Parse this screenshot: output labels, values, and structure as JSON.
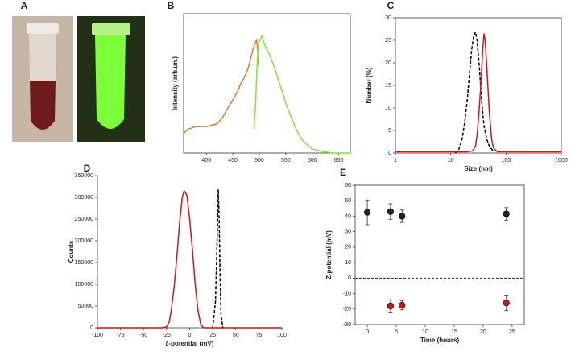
{
  "chart_data": [
    {
      "type": "image",
      "panel_label": "A"
    },
    {
      "type": "line",
      "panel_label": "B",
      "ylabel": "Intensity (arb.un.)",
      "xlim": [
        357,
        672
      ],
      "xticks": [
        400,
        450,
        500,
        550,
        600,
        650
      ],
      "ylim": [
        0,
        1
      ],
      "box": true,
      "series": [
        {
          "color": "#e07b2e",
          "x": [
            357,
            365,
            380,
            400,
            420,
            430,
            440,
            450,
            460,
            465,
            470,
            475,
            480,
            485,
            490,
            493,
            495,
            497,
            499
          ],
          "values": [
            0.14,
            0.17,
            0.19,
            0.19,
            0.21,
            0.25,
            0.32,
            0.38,
            0.45,
            0.5,
            0.53,
            0.57,
            0.62,
            0.7,
            0.77,
            0.8,
            0.81,
            0.74,
            0.62
          ]
        },
        {
          "color": "#7be83a",
          "x": [
            490,
            493,
            496,
            499,
            502,
            505,
            508,
            512,
            516,
            520,
            530,
            540,
            550,
            560,
            570,
            580,
            590,
            600,
            620,
            640,
            672
          ],
          "values": [
            0.17,
            0.35,
            0.65,
            0.78,
            0.82,
            0.84,
            0.8,
            0.76,
            0.73,
            0.7,
            0.6,
            0.48,
            0.36,
            0.26,
            0.17,
            0.1,
            0.06,
            0.03,
            0.01,
            0,
            0
          ]
        }
      ]
    },
    {
      "type": "line",
      "panel_label": "C",
      "xlabel": "Size (nm)",
      "ylabel": "Number (%)",
      "log_x": true,
      "xlim": [
        1,
        1000
      ],
      "xticks": [
        1,
        10,
        100,
        1000
      ],
      "ylim": [
        0,
        30
      ],
      "yticks": [
        0,
        5,
        10,
        15,
        20,
        25,
        30
      ],
      "box": true,
      "series": [
        {
          "color": "#000000",
          "dashed": true,
          "x": [
            12,
            14,
            16,
            18,
            20,
            22,
            24,
            26,
            28,
            30,
            33,
            36,
            40,
            45,
            50,
            60
          ],
          "values": [
            0,
            0.8,
            3,
            7,
            12,
            18,
            23,
            26,
            26.8,
            25,
            19,
            12,
            6,
            3,
            1.5,
            0.3
          ]
        },
        {
          "color": "#d01515",
          "x": [
            1,
            20,
            25,
            28,
            30,
            32,
            35,
            38,
            40,
            42,
            45,
            50,
            55,
            60,
            70,
            100,
            1000
          ],
          "values": [
            0.3,
            0.3,
            0.5,
            1.5,
            4,
            8,
            15,
            23,
            26.5,
            25,
            19,
            9,
            3,
            1,
            0.3,
            0.3,
            0.3
          ]
        }
      ]
    },
    {
      "type": "line",
      "panel_label": "D",
      "xlabel": "ζ-potential (mV)",
      "ylabel": "Counts",
      "xlim": [
        -100,
        100
      ],
      "xticks": [
        -100,
        -75,
        -50,
        -25,
        0,
        25,
        50,
        75,
        100
      ],
      "ylim": [
        0,
        350000
      ],
      "yticks": [
        0,
        50000,
        100000,
        150000,
        200000,
        250000,
        300000,
        350000
      ],
      "box": false,
      "series": [
        {
          "color": "#000000",
          "dashed": true,
          "x": [
            25,
            28,
            30,
            31,
            32,
            33,
            34,
            36,
            37
          ],
          "values": [
            0,
            60000,
            220000,
            318000,
            250000,
            120000,
            30000,
            0,
            0
          ]
        },
        {
          "color": "#d01515",
          "x": [
            -100,
            -30,
            -25,
            -22,
            -20,
            -17,
            -14,
            -11,
            -8,
            -6,
            -3,
            0,
            3,
            6,
            9,
            12,
            15,
            100
          ],
          "values": [
            0,
            0,
            2000,
            15000,
            40000,
            90000,
            160000,
            240000,
            300000,
            315000,
            305000,
            250000,
            180000,
            100000,
            40000,
            8000,
            0,
            0
          ]
        }
      ]
    },
    {
      "type": "scatter",
      "panel_label": "E",
      "xlabel": "Time (hours)",
      "ylabel": "Z-potential (mV)",
      "xlim": [
        -2.1,
        27.1
      ],
      "xticks": [
        0,
        5,
        10,
        15,
        20,
        25
      ],
      "ylim": [
        -30,
        60
      ],
      "yticks": [
        -30,
        -20,
        -10,
        0,
        10,
        20,
        30,
        40,
        50,
        60
      ],
      "box": true,
      "reference_line": 0,
      "reference_color": "#1a1a8c",
      "series": [
        {
          "color": "#222222",
          "x": [
            0,
            4,
            6,
            24
          ],
          "values": [
            42.5,
            43,
            40,
            41.5
          ],
          "errors": [
            8,
            5,
            4,
            4
          ]
        },
        {
          "color": "#d01515",
          "x": [
            4,
            6,
            24
          ],
          "values": [
            -18,
            -17.5,
            -16
          ],
          "errors": [
            4,
            3,
            5
          ]
        }
      ]
    }
  ]
}
